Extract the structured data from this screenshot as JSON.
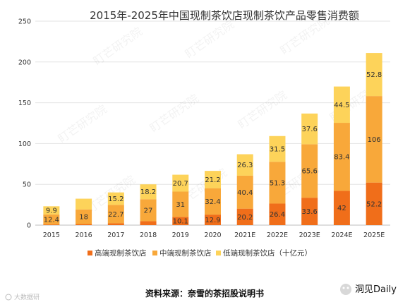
{
  "chart_data": {
    "type": "bar",
    "stacked": true,
    "title": "2015年-2025年中国现制茶饮店现制茶饮产品零售消费额",
    "categories": [
      "2015",
      "2016",
      "2017",
      "2018",
      "2019",
      "2020",
      "2021E",
      "2022E",
      "2023E",
      "2024E",
      "2025E"
    ],
    "yticks": [
      "0",
      "50",
      "100",
      "150",
      "200",
      "250"
    ],
    "ylim": [
      0,
      250
    ],
    "grid": true,
    "legend_position": "bottom",
    "series": [
      {
        "name": "高端现制茶饮店",
        "color": "#f06e1a",
        "values": [
          0.8,
          1.3,
          2.2,
          4.8,
          10.1,
          12.9,
          20.2,
          26.4,
          33.6,
          42,
          52.2
        ],
        "labels": [
          "0.8",
          "1.3",
          "2.2",
          "4.8",
          "10.1",
          "12.9",
          "20.2",
          "26.4",
          "33.6",
          "42",
          "52.2"
        ]
      },
      {
        "name": "中端现制茶饮店",
        "color": "#f8a83a",
        "values": [
          12.4,
          18,
          22.7,
          27,
          31,
          32.4,
          40.4,
          51.3,
          65.6,
          83.4,
          106
        ],
        "labels": [
          "12.4",
          "18",
          "22.7",
          "27",
          "31",
          "32.4",
          "40.4",
          "51.3",
          "65.6",
          "83.4",
          "106"
        ]
      },
      {
        "name": "低端现制茶饮店（十亿元）",
        "color": "#fdd35a",
        "values": [
          9.9,
          13.1,
          15.2,
          18.2,
          20.7,
          21.2,
          26.3,
          31.5,
          37.6,
          44.5,
          52.8
        ],
        "labels": [
          "9.9",
          "",
          "15.2",
          "18.2",
          "20.7",
          "21.2",
          "26.3",
          "31.5",
          "37.6",
          "44.5",
          "52.8"
        ]
      }
    ]
  },
  "footer": {
    "source": "资料来源：奈雪的茶招股说明书",
    "brand": "洞见Daily",
    "small_watermark": "大数据研"
  },
  "watermark_text": "盯芒研究院"
}
